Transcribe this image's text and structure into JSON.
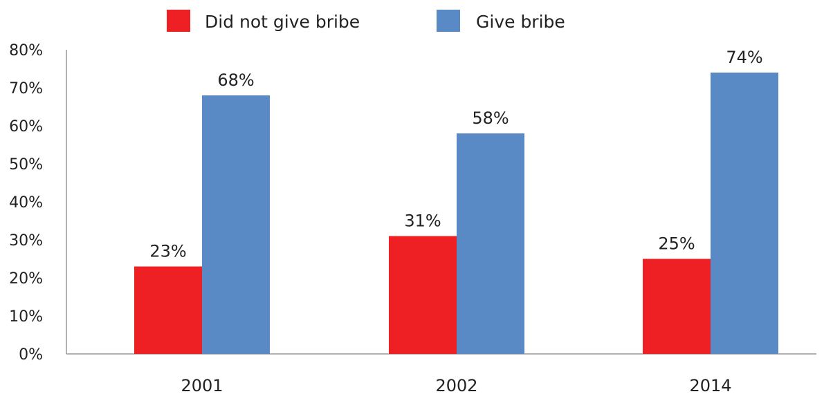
{
  "chart_data": {
    "type": "bar",
    "categories": [
      "2001",
      "2002",
      "2014"
    ],
    "series": [
      {
        "name": "Did not give bribe",
        "color": "#ee2024",
        "values": [
          23,
          31,
          25
        ],
        "labels": [
          "23%",
          "31%",
          "25%"
        ]
      },
      {
        "name": "Give bribe",
        "color": "#5a8ac6",
        "values": [
          68,
          58,
          74
        ],
        "labels": [
          "68%",
          "58%",
          "74%"
        ]
      }
    ],
    "y_ticks": [
      "0%",
      "10%",
      "20%",
      "30%",
      "40%",
      "50%",
      "60%",
      "70%",
      "80%"
    ],
    "ylim": [
      0,
      80
    ],
    "grid": false,
    "legend_position": "top-center"
  }
}
